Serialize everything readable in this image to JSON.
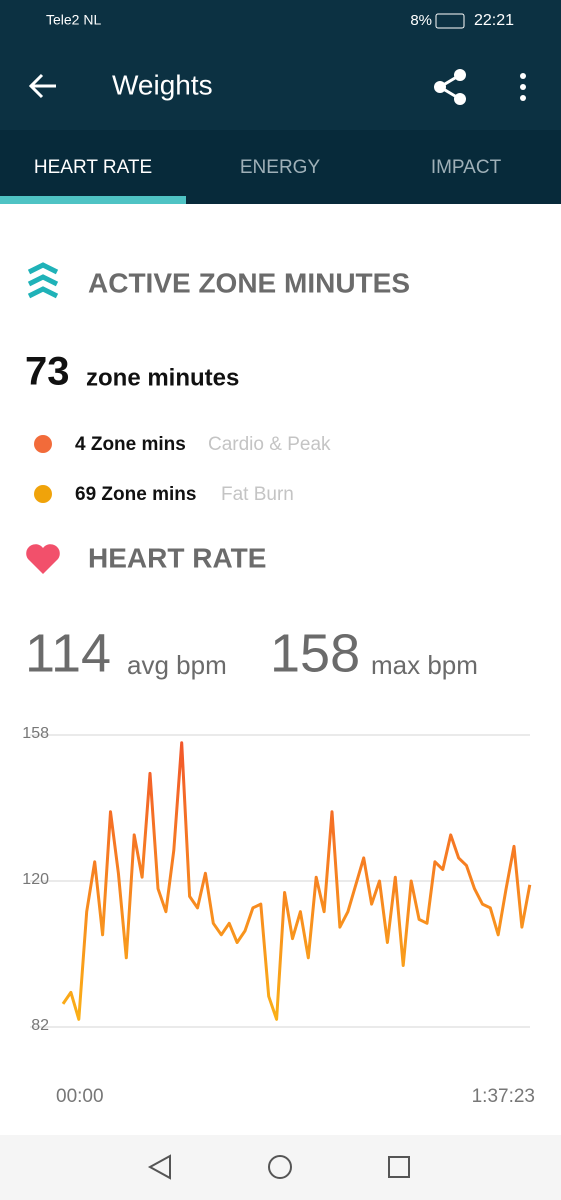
{
  "status_bar": {
    "carrier": "Tele2 NL",
    "battery": "8%",
    "time": "22:21"
  },
  "app_bar": {
    "title": "Weights"
  },
  "tabs": [
    "HEART RATE",
    "ENERGY",
    "IMPACT"
  ],
  "active_zone": {
    "heading": "ACTIVE ZONE MINUTES",
    "total": 73,
    "total_label": "zone minutes",
    "zones": [
      {
        "label": "4 Zone mins",
        "kind": "Cardio & Peak",
        "color": "#f26b3a"
      },
      {
        "label": "69 Zone mins",
        "kind": "Fat Burn",
        "color": "#f0a30a"
      }
    ]
  },
  "heart_rate": {
    "heading": "HEART RATE",
    "avg": 114,
    "avg_label": "avg bpm",
    "max": 158,
    "max_label": "max bpm"
  },
  "chart_data": {
    "type": "line",
    "colors": [
      "#f2552c",
      "#fbb216"
    ],
    "x": [
      0,
      99,
      198,
      297,
      396,
      495,
      594,
      693,
      792,
      891,
      990,
      1089,
      1188,
      1287,
      1386,
      1485,
      1584,
      1683,
      1782,
      1881,
      1980,
      2079,
      2178,
      2277,
      2376,
      2475,
      2574,
      2673,
      2772,
      2871,
      2970,
      3069,
      3168,
      3267,
      3366,
      3465,
      3564,
      3663,
      3762,
      3861,
      3960,
      4059,
      4158,
      4257,
      4356,
      4455,
      4554,
      4653,
      4752,
      4851,
      4950,
      5049,
      5148,
      5247,
      5346,
      5445,
      5544,
      5643,
      5742,
      5841
    ],
    "values": [
      88,
      91,
      84,
      112,
      125,
      106,
      138,
      122,
      100,
      132,
      121,
      148,
      118,
      112,
      128,
      156,
      116,
      113,
      122,
      109,
      106,
      109,
      104,
      107,
      113,
      114,
      90,
      84,
      117,
      105,
      112,
      100,
      121,
      112,
      138,
      108,
      112,
      119,
      126,
      114,
      120,
      104,
      121,
      98,
      120,
      110,
      109,
      125,
      123,
      132,
      126,
      124,
      118,
      114,
      113,
      106,
      118,
      129,
      108,
      119
    ],
    "xlim": [
      0,
      5843
    ],
    "xticks": [
      {
        "value": 0,
        "label": "00:00"
      },
      {
        "value": 5843,
        "label": "1:37:23"
      }
    ],
    "ylim": [
      82,
      158
    ],
    "yticks": [
      82,
      120,
      158
    ],
    "grid": true
  }
}
